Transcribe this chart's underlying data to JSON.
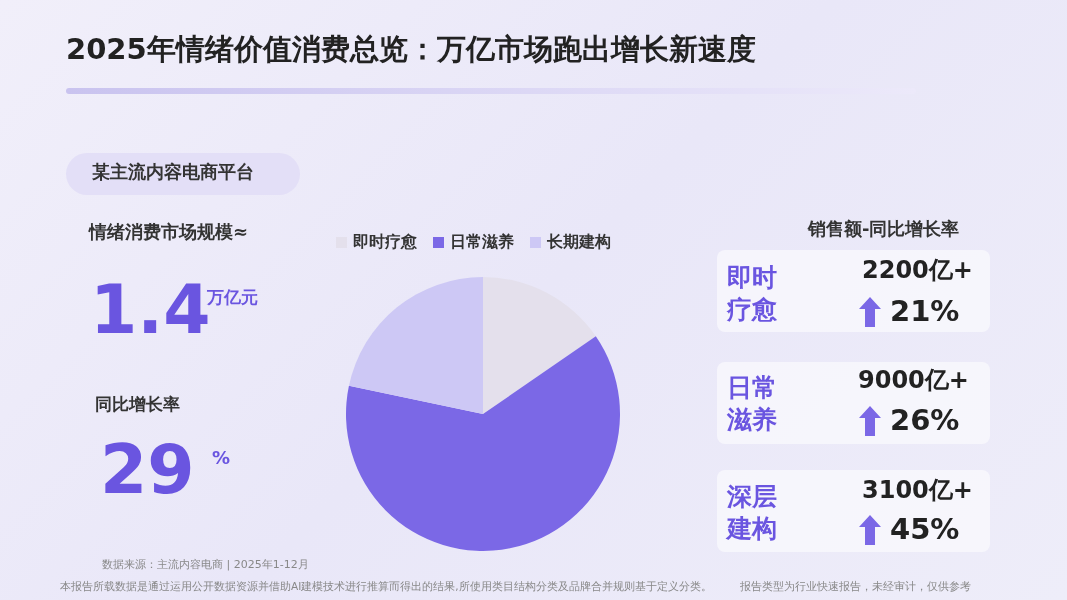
{
  "chart_data": {
    "type": "pie",
    "title": "2025年情绪价值消费总览：万亿市场跑出增长新速度",
    "categories": [
      "即时疗愈",
      "日常滋养",
      "长期建构"
    ],
    "values": [
      15.4,
      62.9,
      21.7
    ],
    "colors": [
      "#e4e0ec",
      "#7b68e6",
      "#cdc8f5"
    ],
    "legend": "top",
    "annotations": [
      "某主流内容电商平台",
      "情绪消费市场规模≈",
      "1.4",
      "万亿元",
      "同比增长率",
      "29",
      "%",
      "销售额-同比增长率",
      "即时疗愈",
      "2200亿+",
      "21%",
      "日常滋养",
      "9000亿+",
      "26%",
      "深层建构",
      "3100亿+",
      "45%",
      "数据来源：主流内容电商 | 2025年1-12月",
      "本报告所载数据是通过运用公开数据资源并借助AI建模技术进行推算而得出的结果,所使用类目结构分类及品牌合并规则基于定义分类。",
      "报告类型为行业快速报告，未经审计，仅供参考"
    ]
  }
}
